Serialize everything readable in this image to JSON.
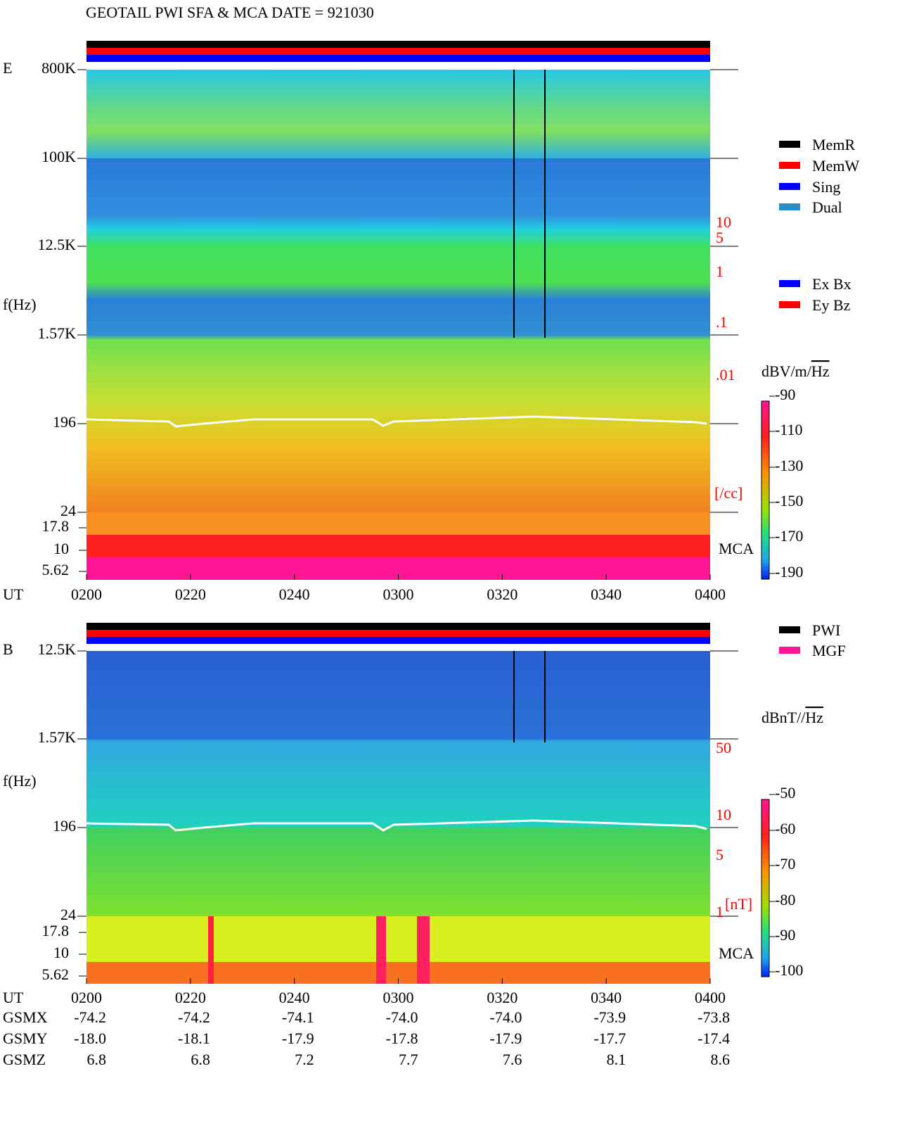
{
  "title": "GEOTAIL  PWI SFA & MCA   DATE = 921030",
  "panels": [
    {
      "label": "E",
      "ylabel": "f(Hz)",
      "freq_ticks": [
        "800K",
        "100K",
        "12.5K",
        "1.57K",
        "196",
        "24"
      ],
      "mca_ticks": [
        "17.8",
        "10",
        "5.62"
      ],
      "mca_label": "MCA",
      "right_ticks": [
        "10",
        "5",
        "1",
        ".1",
        ".01"
      ],
      "right_unit": "[/cc]",
      "legend": [
        {
          "name": "MemR",
          "color": "#000000"
        },
        {
          "name": "MemW",
          "color": "#ff0000"
        },
        {
          "name": "Sing",
          "color": "#0000ff"
        },
        {
          "name": "Dual",
          "color": "#2a8cc8"
        }
      ],
      "legend2": [
        {
          "name": "Ex Bx",
          "color": "#0000ff"
        },
        {
          "name": "Ey Bz",
          "color": "#ff0000"
        }
      ],
      "colorbar_unit": "dBV/m/",
      "colorbar_unit_root": "Hz",
      "colorbar_ticks": [
        "-90",
        "-110",
        "-130",
        "-150",
        "-170",
        "-190"
      ]
    },
    {
      "label": "B",
      "ylabel": "f(Hz)",
      "freq_ticks": [
        "12.5K",
        "1.57K",
        "196",
        "24"
      ],
      "mca_ticks": [
        "17.8",
        "10",
        "5.62"
      ],
      "mca_label": "MCA",
      "right_ticks": [
        "50",
        "10",
        "5",
        "1"
      ],
      "right_unit": "[nT]",
      "legend": [
        {
          "name": "PWI",
          "color": "#000000"
        },
        {
          "name": "MGF",
          "color": "#ff1493"
        }
      ],
      "colorbar_unit": "dBnT//",
      "colorbar_unit_root": "Hz",
      "colorbar_ticks": [
        "-50",
        "-60",
        "-70",
        "-80",
        "-90",
        "-100"
      ]
    }
  ],
  "time_label": "UT",
  "times": [
    "0200",
    "0220",
    "0240",
    "0300",
    "0320",
    "0340",
    "0400"
  ],
  "orbit": [
    {
      "label": "GSMX",
      "values": [
        "-74.2",
        "-74.2",
        "-74.1",
        "-74.0",
        "-74.0",
        "-73.9",
        "-73.8"
      ]
    },
    {
      "label": "GSMY",
      "values": [
        "-18.0",
        "-18.1",
        "-17.9",
        "-17.8",
        "-17.9",
        "-17.7",
        "-17.4"
      ]
    },
    {
      "label": "GSMZ",
      "values": [
        "6.8",
        "6.8",
        "7.2",
        "7.7",
        "7.6",
        "8.1",
        "8.6"
      ]
    }
  ]
}
